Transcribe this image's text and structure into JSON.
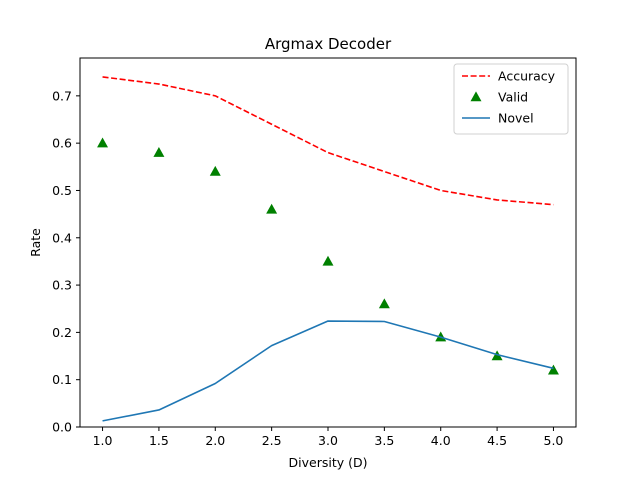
{
  "chart_data": {
    "type": "line",
    "title": "Argmax Decoder",
    "xlabel": "Diversity (D)",
    "ylabel": "Rate",
    "xlim": [
      0.8,
      5.2
    ],
    "ylim": [
      0.0,
      0.78
    ],
    "xticks": [
      1.0,
      1.5,
      2.0,
      2.5,
      3.0,
      3.5,
      4.0,
      4.5,
      5.0
    ],
    "yticks": [
      0.0,
      0.1,
      0.2,
      0.3,
      0.4,
      0.5,
      0.6,
      0.7
    ],
    "grid": false,
    "legend_position": "top-right",
    "x": [
      1.0,
      1.5,
      2.0,
      2.5,
      3.0,
      3.5,
      4.0,
      4.5,
      5.0
    ],
    "series": [
      {
        "name": "Accuracy",
        "style": "dashed-line",
        "color": "#ff0000",
        "values": [
          0.74,
          0.725,
          0.7,
          0.64,
          0.58,
          0.54,
          0.5,
          0.48,
          0.47
        ]
      },
      {
        "name": "Valid",
        "style": "triangle-markers",
        "color": "#008000",
        "values": [
          0.6,
          0.58,
          0.54,
          0.46,
          0.35,
          0.26,
          0.19,
          0.15,
          0.12
        ]
      },
      {
        "name": "Novel",
        "style": "solid-line",
        "color": "#1f77b4",
        "values": [
          0.013,
          0.036,
          0.092,
          0.172,
          0.224,
          0.223,
          0.19,
          0.153,
          0.124
        ]
      }
    ]
  }
}
